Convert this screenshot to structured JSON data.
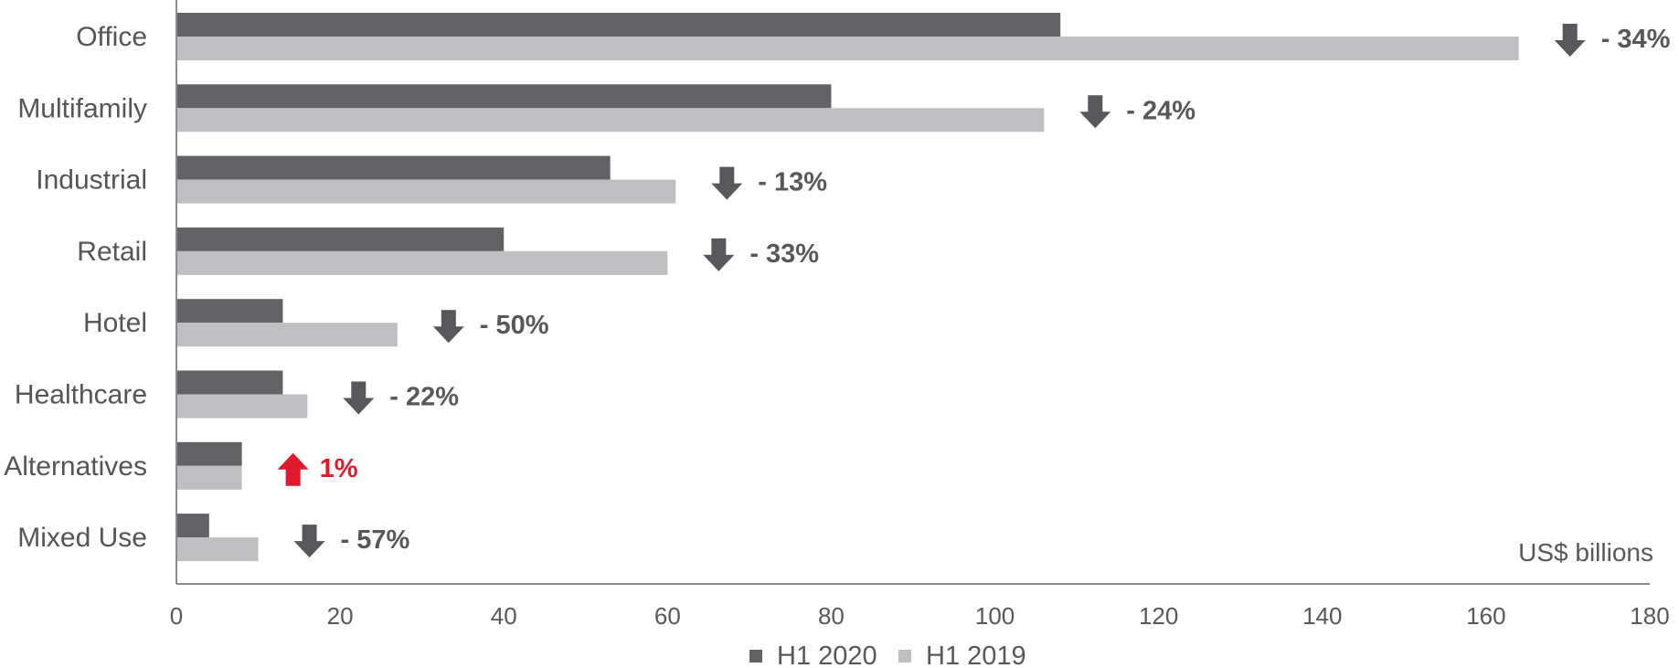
{
  "chart_data": {
    "type": "bar",
    "orientation": "horizontal",
    "categories": [
      "Office",
      "Multifamily",
      "Industrial",
      "Retail",
      "Hotel",
      "Healthcare",
      "Alternatives",
      "Mixed Use"
    ],
    "series": [
      {
        "name": "H1 2020",
        "values": [
          108,
          80,
          53,
          40,
          13,
          13,
          8,
          4
        ],
        "color": "#636367"
      },
      {
        "name": "H1 2019",
        "values": [
          164,
          106,
          61,
          60,
          27,
          16,
          8,
          10
        ],
        "color": "#bfbfc1"
      }
    ],
    "changes": [
      {
        "text": "- 34%",
        "direction": "down"
      },
      {
        "text": "- 24%",
        "direction": "down"
      },
      {
        "text": "- 13%",
        "direction": "down"
      },
      {
        "text": "- 33%",
        "direction": "down"
      },
      {
        "text": "- 50%",
        "direction": "down"
      },
      {
        "text": "- 22%",
        "direction": "down"
      },
      {
        "text": "1%",
        "direction": "up"
      },
      {
        "text": "- 57%",
        "direction": "down"
      }
    ],
    "xlim": [
      0,
      180
    ],
    "xticks": [
      0,
      20,
      40,
      60,
      80,
      100,
      120,
      140,
      160,
      180
    ],
    "unit_label": "US$ billions",
    "legend_position": "bottom-center",
    "grid": false,
    "colors": {
      "down": "#58585c",
      "up": "#e01a2b",
      "axis": "#8c8c90"
    }
  }
}
